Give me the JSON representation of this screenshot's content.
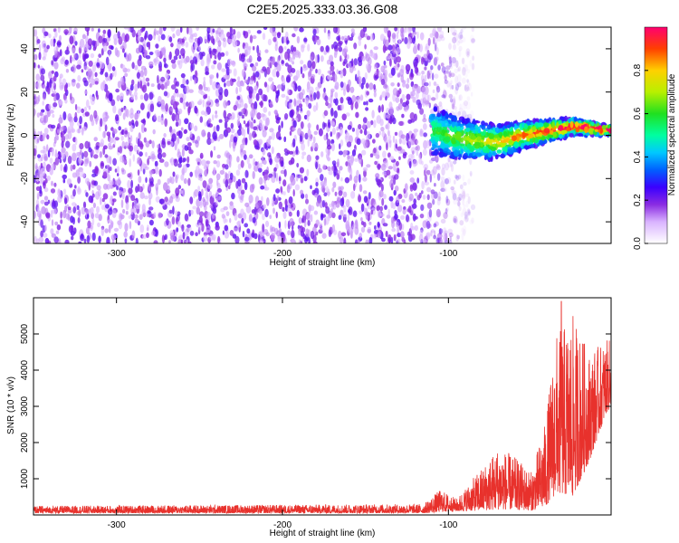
{
  "chart_data": [
    {
      "type": "heatmap",
      "title": "C2E5.2025.333.03.36.G08",
      "xlabel": "Height of straight line (km)",
      "ylabel": "Frequency (Hz)",
      "xlim": [
        -350,
        -2
      ],
      "ylim": [
        -50,
        50
      ],
      "xticks": [
        -300,
        -200,
        -100
      ],
      "yticks": [
        -40,
        -20,
        0,
        20,
        40
      ],
      "colorbar": {
        "label": "Normalized spectral amplitude",
        "range": [
          0,
          1
        ],
        "ticks": [
          "0.0",
          "0.2",
          "0.4",
          "0.6",
          "0.8"
        ]
      },
      "signal_track": {
        "start_x": -110,
        "points": [
          {
            "x": -110,
            "y": 2
          },
          {
            "x": -90,
            "y": -2
          },
          {
            "x": -70,
            "y": -3
          },
          {
            "x": -55,
            "y": 0
          },
          {
            "x": -40,
            "y": 2
          },
          {
            "x": -25,
            "y": 4
          },
          {
            "x": -10,
            "y": 3
          },
          {
            "x": -2,
            "y": 2
          }
        ],
        "peak_amplitude": 1.0
      },
      "background_noise_amplitude": 0.1,
      "noise_cutoff_x": -95
    },
    {
      "type": "line",
      "xlabel": "Height of straight line (km)",
      "ylabel": "SNR (10 * v/v)",
      "xlim": [
        -350,
        -2
      ],
      "ylim": [
        0,
        6000
      ],
      "xticks": [
        -300,
        -200,
        -100
      ],
      "yticks": [
        1000,
        2000,
        3000,
        4000,
        5000
      ],
      "color": "#e8312c",
      "envelope": [
        {
          "x": -350,
          "low": 50,
          "high": 250
        },
        {
          "x": -115,
          "low": 50,
          "high": 300
        },
        {
          "x": -105,
          "low": 80,
          "high": 700
        },
        {
          "x": -95,
          "low": 100,
          "high": 450
        },
        {
          "x": -80,
          "low": 120,
          "high": 1300
        },
        {
          "x": -70,
          "low": 150,
          "high": 1900
        },
        {
          "x": -60,
          "low": 150,
          "high": 1600
        },
        {
          "x": -50,
          "low": 120,
          "high": 1200
        },
        {
          "x": -42,
          "low": 200,
          "high": 2500
        },
        {
          "x": -35,
          "low": 600,
          "high": 5000
        },
        {
          "x": -25,
          "low": 500,
          "high": 5500
        },
        {
          "x": -15,
          "low": 1500,
          "high": 4500
        },
        {
          "x": -5,
          "low": 2800,
          "high": 4800
        },
        {
          "x": -2,
          "low": 3000,
          "high": 4900
        }
      ],
      "peak": {
        "x": -32,
        "y": 5900
      }
    }
  ]
}
